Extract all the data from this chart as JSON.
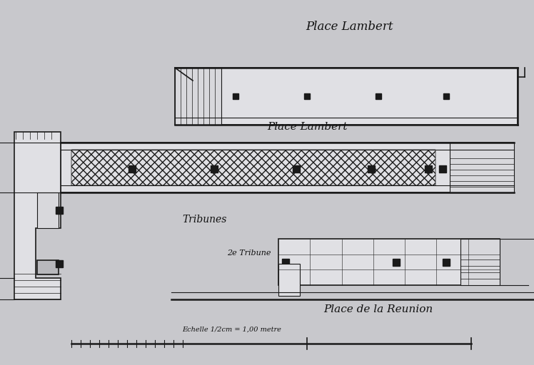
{
  "bg_color": "#c8c8cc",
  "line_color": "#1a1a1a",
  "fill_light": "#d8d8dc",
  "fill_lighter": "#e0e0e4",
  "fill_medium": "#b8b8bc",
  "title_top": "Place Lambert",
  "title_middle": "Place Lambert",
  "title_bottom_right": "Place de la Reunion",
  "label_tribunes": "Tribunes",
  "label_2nd": "2e Tribune",
  "scale_text": "Echelle 1/2cm = 1,00 metre",
  "text_color": "#111111",
  "figsize": [
    7.48,
    5.12
  ],
  "dpi": 100
}
